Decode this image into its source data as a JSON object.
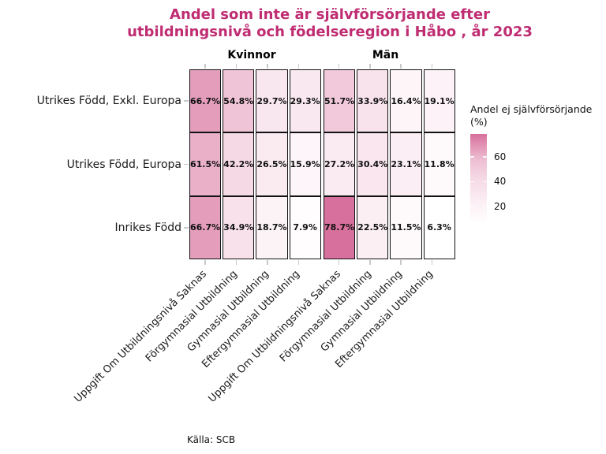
{
  "title": {
    "line1": "Andel som inte är självförsörjande efter",
    "line2": "utbildningsnivå och födelseregion i Håbo , år 2023",
    "color": "#BF2C72"
  },
  "caption": "Källa: SCB",
  "legend": {
    "title_line1": "Andel ej självförsörjande",
    "title_line2": "(%)",
    "tick_labels": [
      "60",
      "40",
      "20"
    ]
  },
  "chart_data": {
    "type": "heatmap",
    "facets": [
      "Kvinnor",
      "Män"
    ],
    "rows": [
      "Utrikes Född, Exkl. Europa",
      "Utrikes Född, Europa",
      "Inrikes Född"
    ],
    "columns": [
      "Uppgift Om Utbildningsnivå Saknas",
      "Förgymnasial Utbildning",
      "Gymnasial Utbildning",
      "Eftergymnasial Utbildning"
    ],
    "values": {
      "Kvinnor": [
        [
          66.7,
          54.8,
          29.7,
          29.3
        ],
        [
          61.5,
          42.2,
          26.5,
          15.9
        ],
        [
          66.7,
          34.9,
          18.7,
          7.9
        ]
      ],
      "Män": [
        [
          51.7,
          33.9,
          16.4,
          19.1
        ],
        [
          27.2,
          30.4,
          23.1,
          11.8
        ],
        [
          78.7,
          22.5,
          11.5,
          6.3
        ]
      ]
    },
    "value_suffix": "%",
    "scale": {
      "min": 6.3,
      "max": 78.7,
      "legend_ticks": [
        60,
        40,
        20
      ],
      "low_color": "#FFFFFF",
      "high_color": "#D7709C"
    },
    "legend_title": "Andel ej självförsörjande (%)",
    "grid": false,
    "legend_position": "right"
  }
}
